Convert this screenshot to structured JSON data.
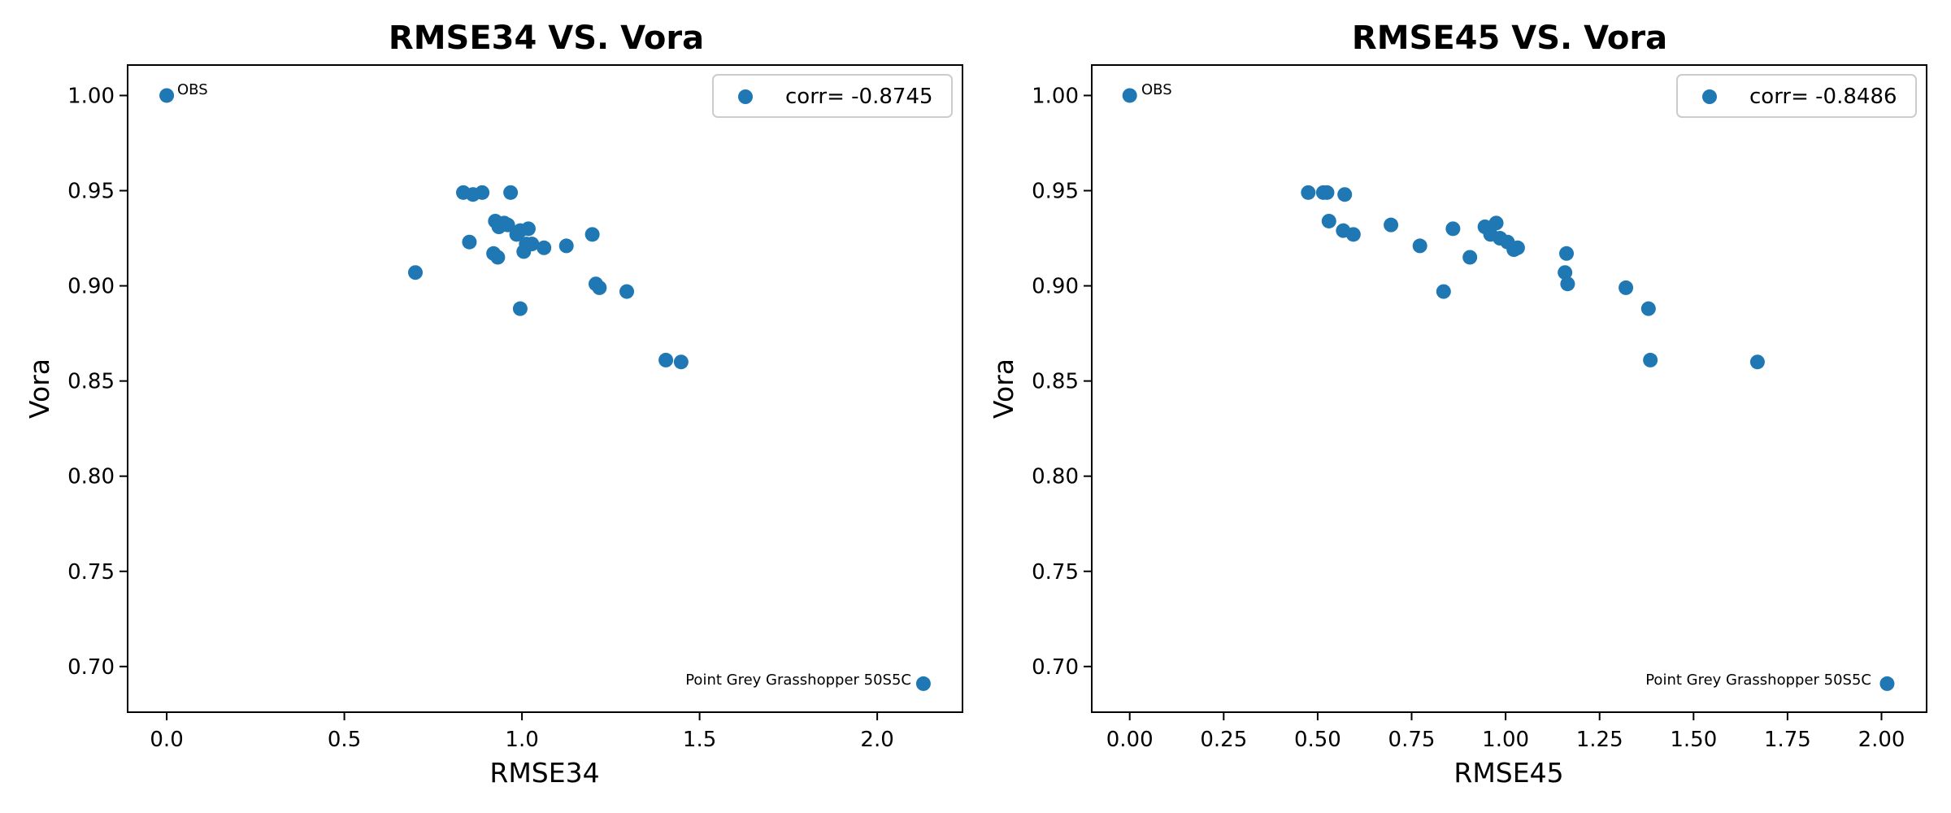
{
  "colors": {
    "points": "#1f77b4",
    "axes": "#000000",
    "background": "#ffffff",
    "legend_border": "#cccccc"
  },
  "chart_data": [
    {
      "type": "scatter",
      "title": "RMSE34 VS. Vora",
      "xlabel": "RMSE34",
      "ylabel": "Vora",
      "xlim": [
        -0.11,
        2.24
      ],
      "ylim": [
        0.676,
        1.016
      ],
      "xticks": [
        0.0,
        0.5,
        1.0,
        1.5,
        2.0
      ],
      "xtick_labels": [
        "0.0",
        "0.5",
        "1.0",
        "1.5",
        "2.0"
      ],
      "yticks": [
        0.7,
        0.75,
        0.8,
        0.85,
        0.9,
        0.95,
        1.0
      ],
      "ytick_labels": [
        "0.70",
        "0.75",
        "0.80",
        "0.85",
        "0.90",
        "0.95",
        "1.00"
      ],
      "grid": false,
      "legend": {
        "position": "top-right",
        "entries": [
          "corr= -0.8745"
        ]
      },
      "series": [
        {
          "name": "corr= -0.8745",
          "points": [
            [
              0.0,
              1.0
            ],
            [
              0.7,
              0.907
            ],
            [
              0.835,
              0.949
            ],
            [
              0.862,
              0.948
            ],
            [
              0.888,
              0.949
            ],
            [
              0.968,
              0.949
            ],
            [
              0.852,
              0.923
            ],
            [
              0.925,
              0.934
            ],
            [
              0.935,
              0.931
            ],
            [
              0.95,
              0.933
            ],
            [
              0.96,
              0.932
            ],
            [
              0.92,
              0.917
            ],
            [
              0.932,
              0.915
            ],
            [
              0.985,
              0.927
            ],
            [
              0.995,
              0.929
            ],
            [
              1.018,
              0.93
            ],
            [
              1.012,
              0.922
            ],
            [
              1.028,
              0.922
            ],
            [
              1.005,
              0.918
            ],
            [
              1.062,
              0.92
            ],
            [
              1.125,
              0.921
            ],
            [
              1.198,
              0.927
            ],
            [
              0.995,
              0.888
            ],
            [
              1.208,
              0.901
            ],
            [
              1.218,
              0.899
            ],
            [
              1.295,
              0.897
            ],
            [
              1.405,
              0.861
            ],
            [
              1.448,
              0.86
            ],
            [
              2.13,
              0.691
            ]
          ]
        }
      ],
      "annotations": [
        {
          "text": "OBS",
          "x": 0.0,
          "y": 1.0
        },
        {
          "text": "Point Grey Grasshopper 50S5C",
          "x": 2.13,
          "y": 0.691
        }
      ]
    },
    {
      "type": "scatter",
      "title": "RMSE45 VS. Vora",
      "xlabel": "RMSE45",
      "ylabel": "Vora",
      "xlim": [
        -0.101,
        2.12
      ],
      "ylim": [
        0.676,
        1.016
      ],
      "xticks": [
        0.0,
        0.25,
        0.5,
        0.75,
        1.0,
        1.25,
        1.5,
        1.75,
        2.0
      ],
      "xtick_labels": [
        "0.00",
        "0.25",
        "0.50",
        "0.75",
        "1.00",
        "1.25",
        "1.50",
        "1.75",
        "2.00"
      ],
      "yticks": [
        0.7,
        0.75,
        0.8,
        0.85,
        0.9,
        0.95,
        1.0
      ],
      "ytick_labels": [
        "0.70",
        "0.75",
        "0.80",
        "0.85",
        "0.90",
        "0.95",
        "1.00"
      ],
      "grid": false,
      "legend": {
        "position": "top-right",
        "entries": [
          "corr= -0.8486"
        ]
      },
      "series": [
        {
          "name": "corr= -0.8486",
          "points": [
            [
              0.0,
              1.0
            ],
            [
              0.475,
              0.949
            ],
            [
              0.515,
              0.949
            ],
            [
              0.525,
              0.949
            ],
            [
              0.572,
              0.948
            ],
            [
              0.53,
              0.934
            ],
            [
              0.568,
              0.929
            ],
            [
              0.595,
              0.927
            ],
            [
              0.695,
              0.932
            ],
            [
              0.772,
              0.921
            ],
            [
              0.86,
              0.93
            ],
            [
              0.835,
              0.897
            ],
            [
              0.905,
              0.915
            ],
            [
              0.945,
              0.931
            ],
            [
              0.96,
              0.927
            ],
            [
              0.975,
              0.933
            ],
            [
              0.985,
              0.925
            ],
            [
              1.005,
              0.923
            ],
            [
              1.022,
              0.919
            ],
            [
              1.032,
              0.92
            ],
            [
              1.162,
              0.917
            ],
            [
              1.158,
              0.907
            ],
            [
              1.165,
              0.901
            ],
            [
              1.32,
              0.899
            ],
            [
              1.38,
              0.888
            ],
            [
              1.385,
              0.861
            ],
            [
              1.67,
              0.86
            ],
            [
              2.015,
              0.691
            ]
          ]
        }
      ],
      "annotations": [
        {
          "text": "OBS",
          "x": 0.0,
          "y": 1.0
        },
        {
          "text": "Point Grey Grasshopper 50S5C",
          "x": 2.015,
          "y": 0.691
        }
      ]
    }
  ]
}
